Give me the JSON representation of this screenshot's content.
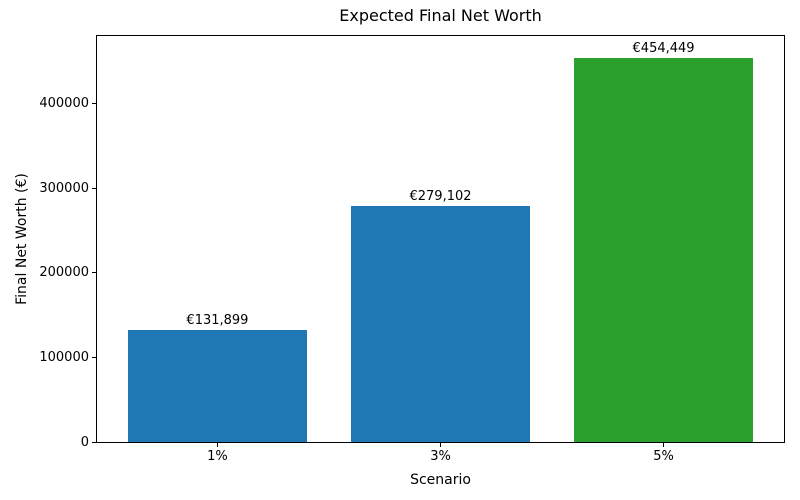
{
  "chart_data": {
    "type": "bar",
    "title": "Expected Final Net Worth",
    "xlabel": "Scenario",
    "ylabel": "Final Net Worth (€)",
    "categories": [
      "1%",
      "3%",
      "5%"
    ],
    "values": [
      131899,
      279102,
      454449
    ],
    "value_labels": [
      "€131,899",
      "€279,102",
      "€454,449"
    ],
    "bar_colors": [
      "#1f77b4",
      "#1f77b4",
      "#2ca02c"
    ],
    "ylim": [
      0,
      480000
    ],
    "yticks": [
      0,
      100000,
      200000,
      300000,
      400000
    ],
    "ytick_labels": [
      "0",
      "100000",
      "200000",
      "300000",
      "400000"
    ],
    "grid": false,
    "legend_position": "none",
    "spine_color": "#000000",
    "background_color": "#ffffff"
  }
}
